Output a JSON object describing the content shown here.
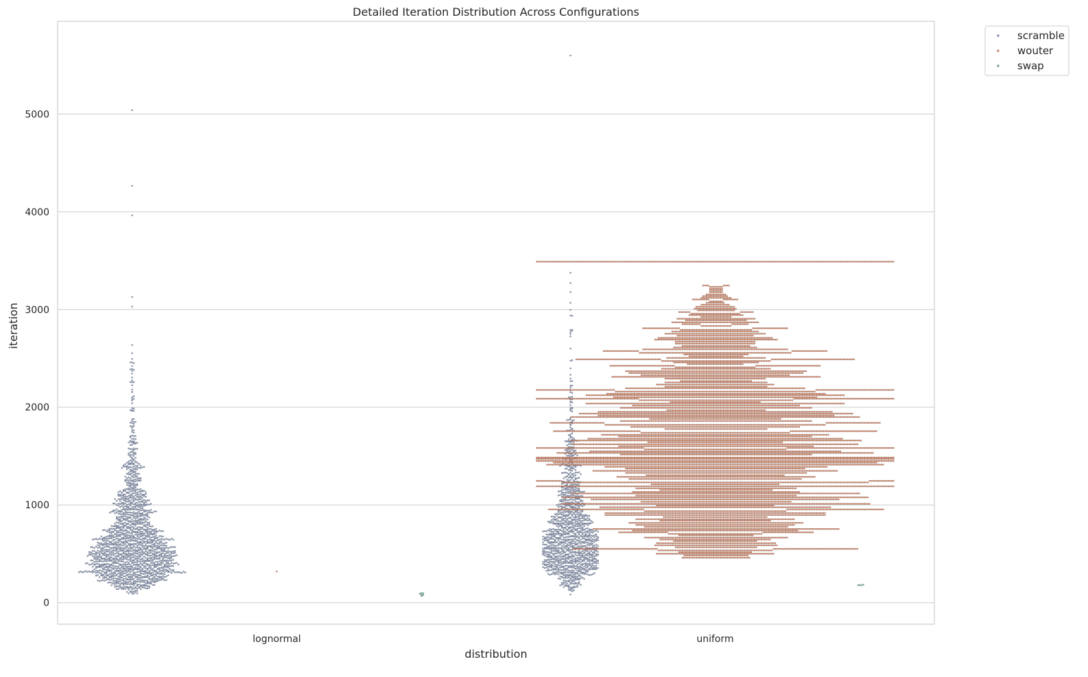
{
  "chart_data": {
    "type": "swarm",
    "title": "Detailed Iteration Distribution Across Configurations",
    "xlabel": "distribution",
    "ylabel": "iteration",
    "categories": [
      "lognormal",
      "uniform"
    ],
    "ylim": [
      -220,
      5950
    ],
    "yticks": [
      0,
      1000,
      2000,
      3000,
      4000,
      5000
    ],
    "grid": "horizontal",
    "legend_position": "upper-right-outside",
    "series": [
      {
        "name": "scramble",
        "color": "#8da0cb",
        "summary": {
          "lognormal": {
            "min": 80,
            "median": 560,
            "max": 5040
          },
          "uniform": {
            "min": 80,
            "median": 660,
            "max": 5600
          }
        }
      },
      {
        "name": "wouter",
        "color": "#fc8d62",
        "summary": {
          "lognormal": {
            "min": 320,
            "median": 320,
            "max": 320
          },
          "uniform": {
            "min": 460,
            "median": 1450,
            "max": 3490
          }
        }
      },
      {
        "name": "swap",
        "color": "#66c2a5",
        "summary": {
          "lognormal": {
            "min": 60,
            "median": 90,
            "max": 100
          },
          "uniform": {
            "min": 170,
            "median": 180,
            "max": 190
          }
        }
      }
    ],
    "colors": {
      "grid": "#d3d3d3",
      "frame": "#cccccc",
      "marker_edge": "#555555"
    }
  }
}
